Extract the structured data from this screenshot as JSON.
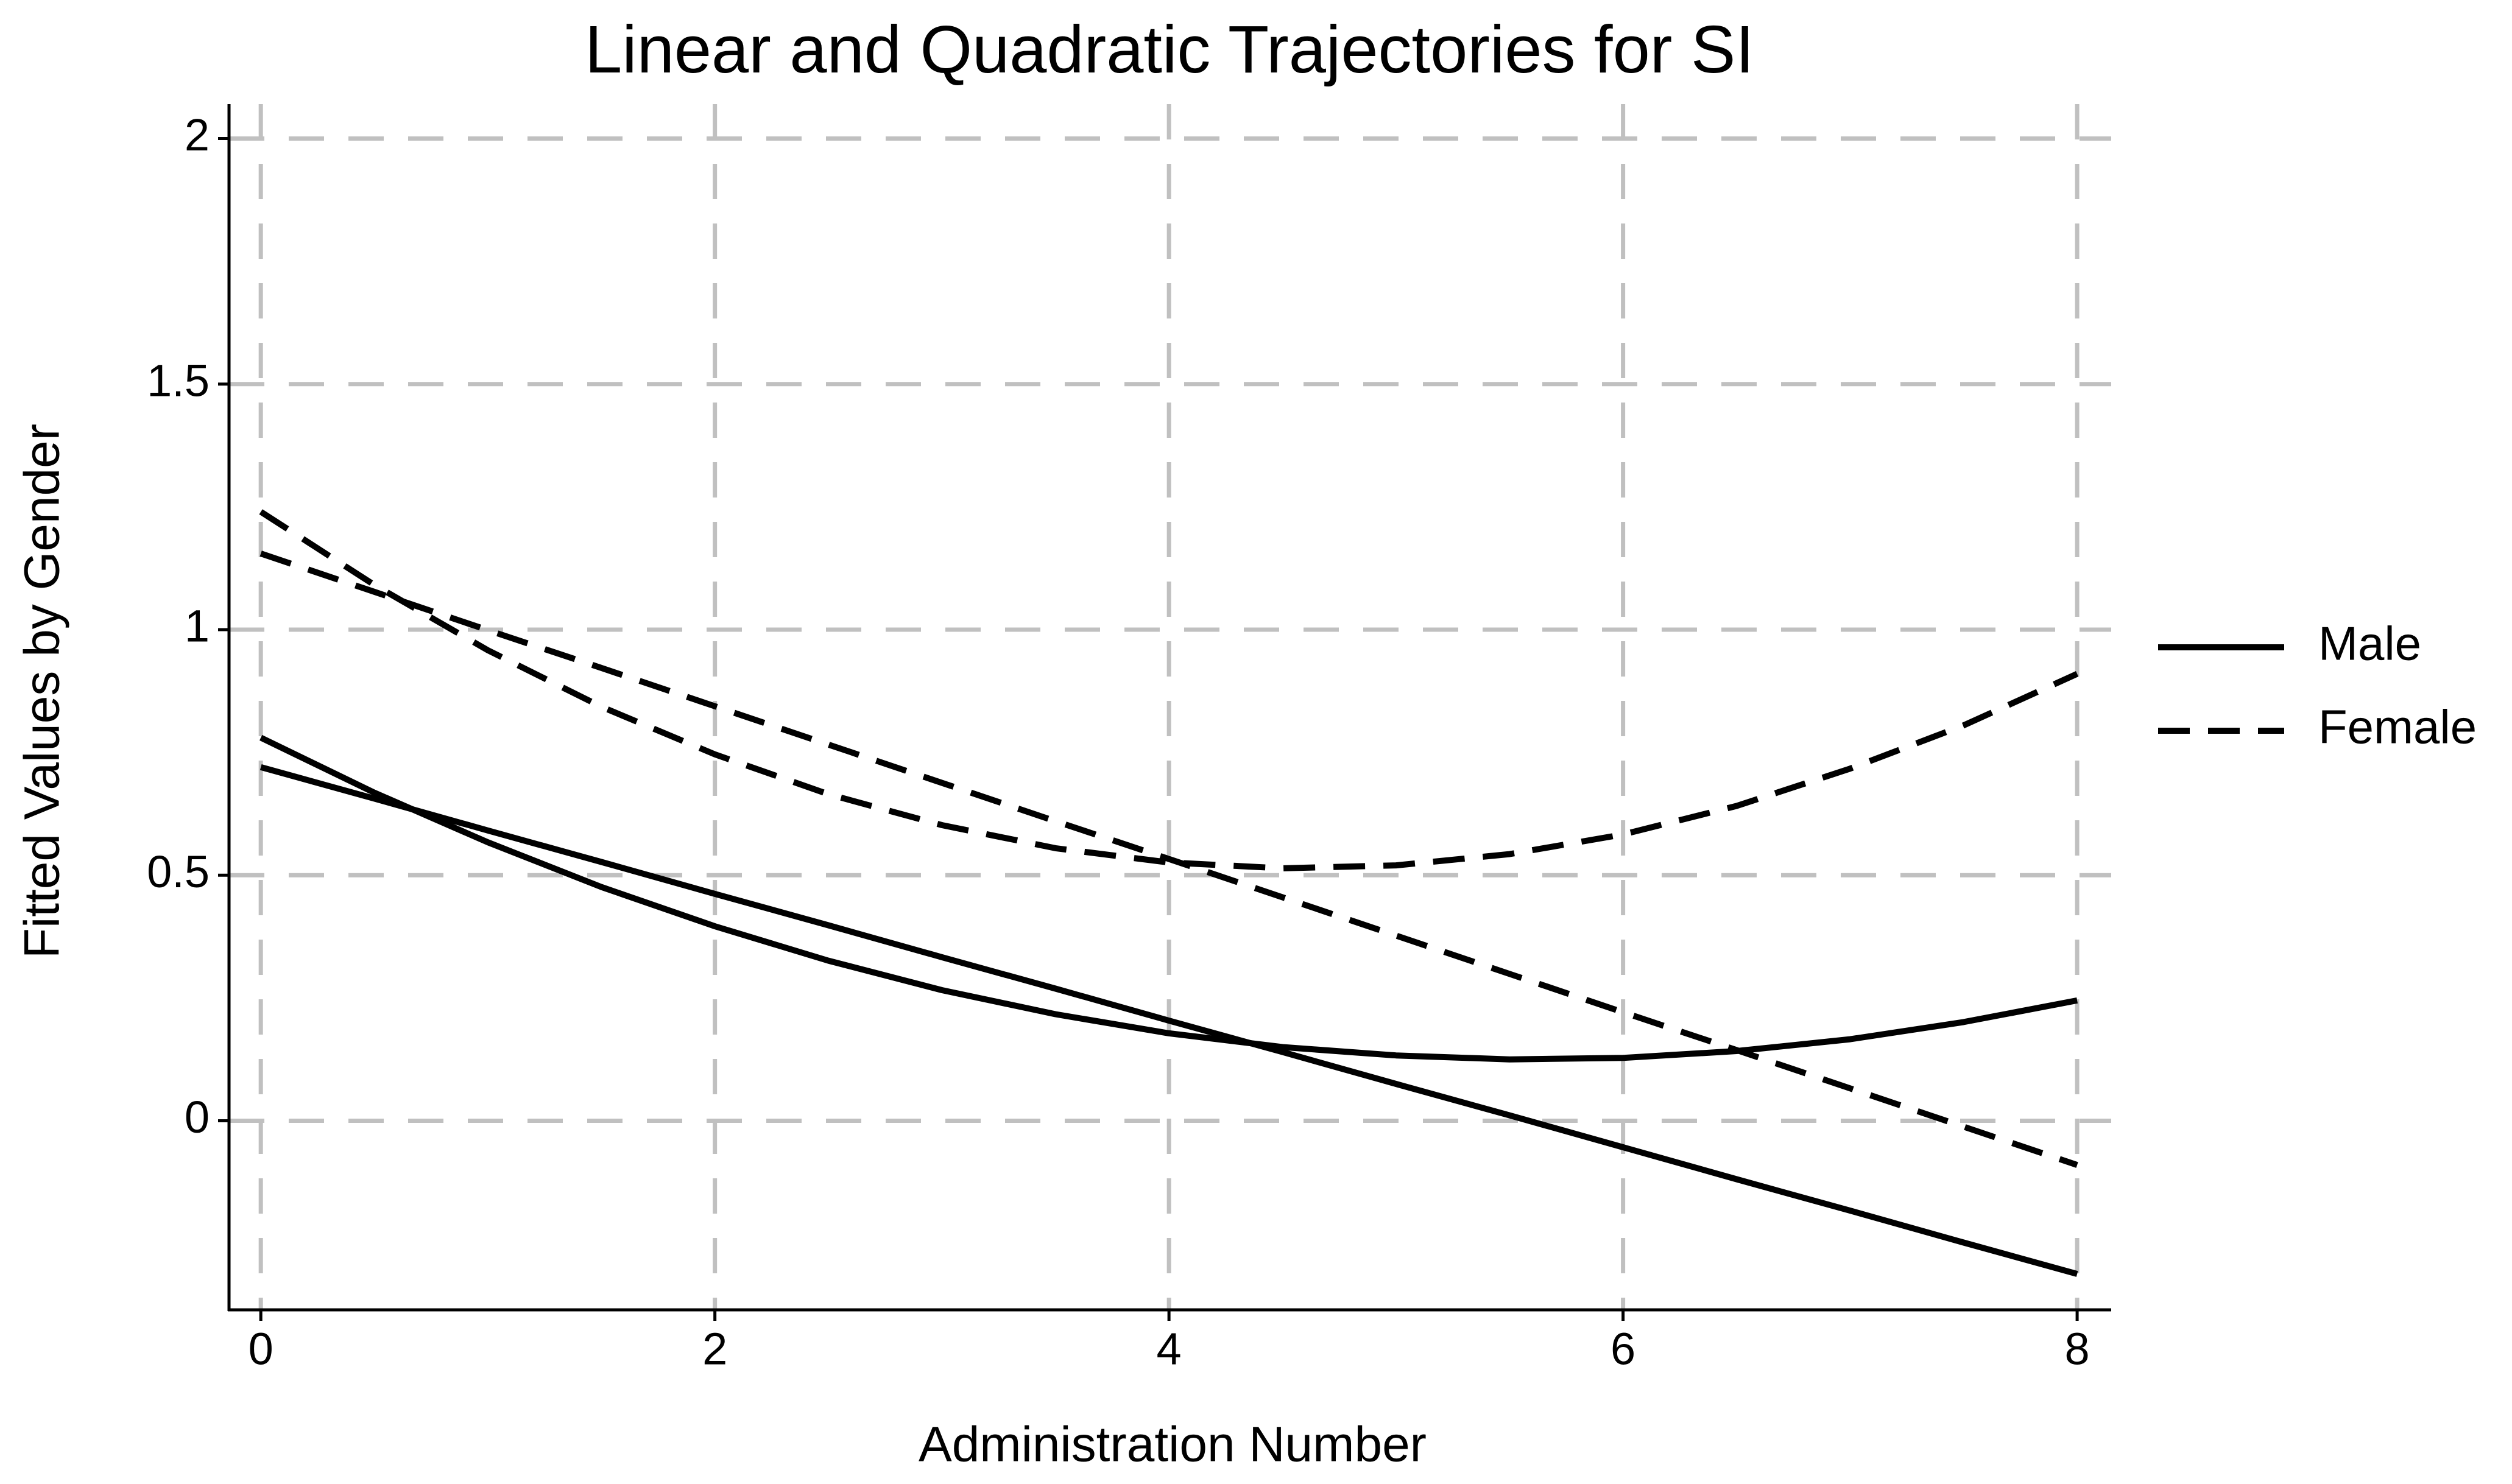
{
  "chart_data": {
    "type": "line",
    "title": "Linear and Quadratic Trajectories for SI",
    "x_label": "Administration Number",
    "y_label": "Fitted Values by Gender",
    "x": [
      0,
      0.5,
      1,
      1.5,
      2,
      2.5,
      3,
      3.5,
      4,
      4.5,
      5,
      5.5,
      6,
      6.5,
      7,
      7.5,
      8
    ],
    "series": [
      {
        "name": "Male",
        "color": "#000000",
        "dash": "solid",
        "linear": [
          0.72,
          0.656,
          0.591,
          0.527,
          0.462,
          0.398,
          0.333,
          0.269,
          0.204,
          0.14,
          0.075,
          0.011,
          -0.054,
          -0.119,
          -0.183,
          -0.248,
          -0.312
        ],
        "quadratic": [
          0.78,
          0.668,
          0.567,
          0.476,
          0.396,
          0.326,
          0.266,
          0.217,
          0.178,
          0.15,
          0.133,
          0.125,
          0.128,
          0.142,
          0.166,
          0.201,
          0.245
        ]
      },
      {
        "name": "Female",
        "color": "#000000",
        "dash": "dashed",
        "linear": [
          1.155,
          1.077,
          0.999,
          0.922,
          0.844,
          0.766,
          0.688,
          0.61,
          0.533,
          0.455,
          0.377,
          0.299,
          0.221,
          0.144,
          0.066,
          -0.012,
          -0.09
        ],
        "quadratic": [
          1.24,
          1.091,
          0.958,
          0.843,
          0.746,
          0.665,
          0.602,
          0.555,
          0.526,
          0.514,
          0.52,
          0.543,
          0.583,
          0.641,
          0.717,
          0.805,
          0.91
        ]
      }
    ],
    "xlim": [
      -0.14,
      8.15
    ],
    "ylim": [
      -0.385,
      2.07
    ],
    "xticks": [
      0,
      2,
      4,
      6,
      8
    ],
    "yticks": [
      0,
      0.5,
      1,
      1.5,
      2
    ],
    "grid": true,
    "legend": "right"
  }
}
